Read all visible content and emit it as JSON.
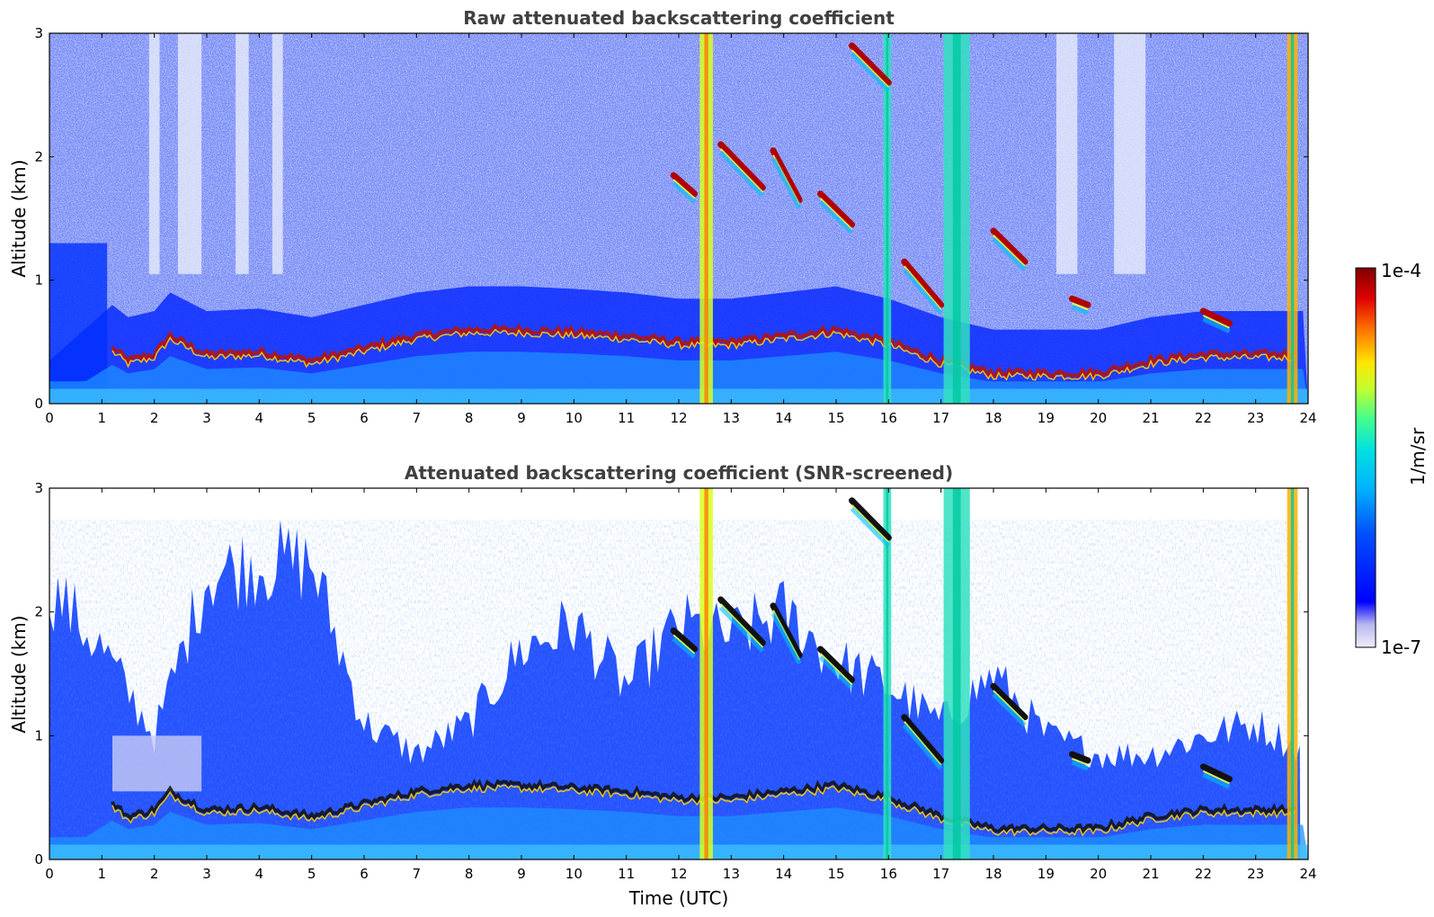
{
  "chart_data": [
    {
      "type": "heatmap",
      "title": "Raw attenuated backscattering coefficient",
      "xlabel": "",
      "ylabel": "Altitude (km)",
      "xlim": [
        0,
        24
      ],
      "ylim": [
        0,
        3
      ],
      "xticks": [
        "0",
        "1",
        "2",
        "3",
        "4",
        "5",
        "6",
        "7",
        "8",
        "9",
        "10",
        "11",
        "12",
        "13",
        "14",
        "15",
        "16",
        "17",
        "18",
        "19",
        "20",
        "21",
        "22",
        "23",
        "24"
      ],
      "yticks": [
        "0",
        "1",
        "2",
        "3"
      ],
      "variable": "raw attenuated backscatter",
      "features": {
        "boundary_layer_top_km": [
          [
            0,
            0.0
          ],
          [
            1.2,
            0.45
          ],
          [
            1.5,
            0.35
          ],
          [
            2.0,
            0.4
          ],
          [
            2.3,
            0.55
          ],
          [
            3.0,
            0.4
          ],
          [
            4.0,
            0.42
          ],
          [
            5.0,
            0.35
          ],
          [
            6.0,
            0.45
          ],
          [
            7.0,
            0.55
          ],
          [
            8.0,
            0.6
          ],
          [
            9.0,
            0.6
          ],
          [
            10.0,
            0.58
          ],
          [
            11.0,
            0.55
          ],
          [
            12.0,
            0.5
          ],
          [
            13.0,
            0.5
          ],
          [
            14.0,
            0.55
          ],
          [
            15.0,
            0.6
          ],
          [
            16.0,
            0.5
          ],
          [
            17.0,
            0.35
          ],
          [
            18.0,
            0.25
          ],
          [
            19.0,
            0.25
          ],
          [
            20.0,
            0.25
          ],
          [
            21.0,
            0.35
          ],
          [
            22.0,
            0.4
          ],
          [
            23.0,
            0.4
          ],
          [
            23.8,
            0.4
          ]
        ],
        "rain_columns_hours": [
          [
            12.4,
            12.65
          ],
          [
            15.9,
            16.05
          ],
          [
            17.05,
            17.55
          ],
          [
            23.6,
            23.8
          ]
        ],
        "cloud_segments": [
          {
            "t0": 12.8,
            "t1": 13.6,
            "h0": 2.1,
            "h1": 1.75
          },
          {
            "t0": 13.8,
            "t1": 14.3,
            "h0": 2.05,
            "h1": 1.65
          },
          {
            "t0": 14.7,
            "t1": 15.3,
            "h0": 1.7,
            "h1": 1.45
          },
          {
            "t0": 15.3,
            "t1": 16.0,
            "h0": 2.9,
            "h1": 2.6
          },
          {
            "t0": 16.3,
            "t1": 17.0,
            "h0": 1.15,
            "h1": 0.8
          },
          {
            "t0": 18.0,
            "t1": 18.6,
            "h0": 1.4,
            "h1": 1.15
          },
          {
            "t0": 19.5,
            "t1": 19.8,
            "h0": 0.85,
            "h1": 0.8
          },
          {
            "t0": 22.0,
            "t1": 22.5,
            "h0": 0.75,
            "h1": 0.65
          },
          {
            "t0": 11.9,
            "t1": 12.3,
            "h0": 1.85,
            "h1": 1.7
          }
        ]
      }
    },
    {
      "type": "heatmap",
      "title": "Attenuated backscattering coefficient (SNR-screened)",
      "xlabel": "Time (UTC)",
      "ylabel": "Altitude (km)",
      "xlim": [
        0,
        24
      ],
      "ylim": [
        0,
        3
      ],
      "xticks": [
        "0",
        "1",
        "2",
        "3",
        "4",
        "5",
        "6",
        "7",
        "8",
        "9",
        "10",
        "11",
        "12",
        "13",
        "14",
        "15",
        "16",
        "17",
        "18",
        "19",
        "20",
        "21",
        "22",
        "23",
        "24"
      ],
      "yticks": [
        "0",
        "1",
        "2",
        "3"
      ],
      "variable": "SNR-screened attenuated backscatter",
      "features": {
        "screen_ceiling_km": [
          [
            0,
            2.2
          ],
          [
            1.0,
            1.7
          ],
          [
            2.0,
            1.0
          ],
          [
            3.0,
            2.3
          ],
          [
            4.0,
            2.4
          ],
          [
            5.0,
            2.4
          ],
          [
            6.0,
            1.1
          ],
          [
            7.0,
            0.85
          ],
          [
            8.0,
            1.1
          ],
          [
            9.0,
            1.7
          ],
          [
            10.0,
            1.9
          ],
          [
            11.0,
            1.4
          ],
          [
            12.0,
            1.9
          ],
          [
            13.0,
            1.8
          ],
          [
            14.0,
            2.0
          ],
          [
            15.0,
            1.6
          ],
          [
            16.0,
            1.4
          ],
          [
            17.0,
            1.1
          ],
          [
            18.0,
            1.5
          ],
          [
            19.0,
            1.0
          ],
          [
            20.0,
            0.85
          ],
          [
            21.0,
            0.85
          ],
          [
            22.0,
            1.0
          ],
          [
            23.0,
            1.1
          ],
          [
            23.8,
            0.9
          ]
        ]
      }
    }
  ],
  "colorbar": {
    "min_label": "1e-7",
    "max_label": "1e-4",
    "units_label": "1/m/sr",
    "colormap": "jet"
  }
}
